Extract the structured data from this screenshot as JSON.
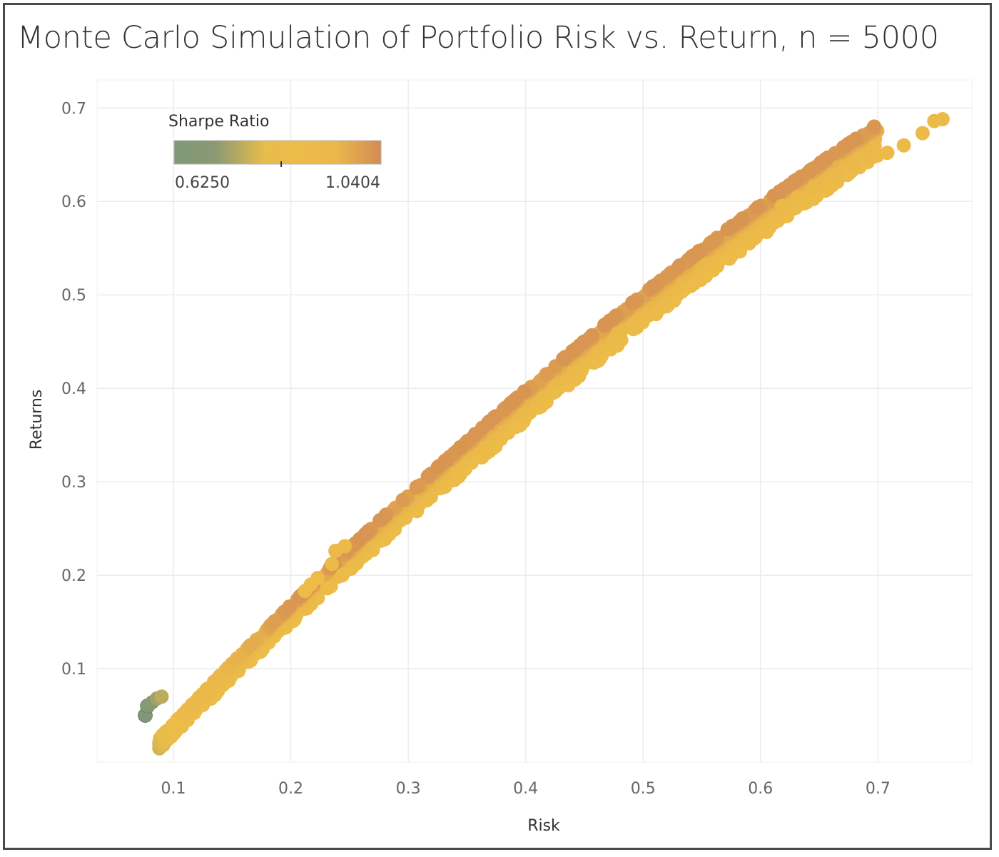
{
  "chart_data": {
    "type": "scatter",
    "title": "Monte Carlo Simulation of Portfolio Risk vs. Return, n = 5000",
    "xlabel": "Risk",
    "ylabel": "Returns",
    "xlim": [
      0.035,
      0.78
    ],
    "ylim": [
      0.0,
      0.73
    ],
    "xticks": [
      0.1,
      0.2,
      0.3,
      0.4,
      0.5,
      0.6,
      0.7
    ],
    "yticks": [
      0.1,
      0.2,
      0.3,
      0.4,
      0.5,
      0.6,
      0.7
    ],
    "grid": true,
    "n": 5000,
    "color_by": "Sharpe Ratio",
    "color_legend": {
      "title": "Sharpe Ratio",
      "min_label": "0.6250",
      "max_label": "1.0404",
      "min": 0.625,
      "max": 1.0404,
      "mid_marker": 0.84,
      "placement": "top-left",
      "colors": [
        "#7f9877",
        "#8a9a73",
        "#e8bd4b",
        "#edbb48",
        "#eab84a",
        "#d38b55"
      ]
    },
    "points": [
      {
        "x": 0.076,
        "y": 0.05,
        "sharpe": 0.63
      },
      {
        "x": 0.078,
        "y": 0.06,
        "sharpe": 0.66
      },
      {
        "x": 0.082,
        "y": 0.064,
        "sharpe": 0.7
      },
      {
        "x": 0.086,
        "y": 0.068,
        "sharpe": 0.73
      },
      {
        "x": 0.09,
        "y": 0.07,
        "sharpe": 0.76
      },
      {
        "x": 0.223,
        "y": 0.197,
        "sharpe": 0.88
      },
      {
        "x": 0.231,
        "y": 0.186,
        "sharpe": 0.87
      },
      {
        "x": 0.235,
        "y": 0.212,
        "sharpe": 0.9
      },
      {
        "x": 0.238,
        "y": 0.226,
        "sharpe": 0.92
      },
      {
        "x": 0.244,
        "y": 0.2,
        "sharpe": 0.86
      },
      {
        "x": 0.246,
        "y": 0.231,
        "sharpe": 0.91
      },
      {
        "x": 0.212,
        "y": 0.183,
        "sharpe": 0.86
      },
      {
        "x": 0.217,
        "y": 0.19,
        "sharpe": 0.87
      },
      {
        "x": 0.618,
        "y": 0.595,
        "sharpe": 0.93
      },
      {
        "x": 0.632,
        "y": 0.605,
        "sharpe": 0.93
      },
      {
        "x": 0.648,
        "y": 0.615,
        "sharpe": 0.92
      },
      {
        "x": 0.664,
        "y": 0.627,
        "sharpe": 0.92
      },
      {
        "x": 0.68,
        "y": 0.64,
        "sharpe": 0.92
      },
      {
        "x": 0.695,
        "y": 0.648,
        "sharpe": 0.92
      },
      {
        "x": 0.708,
        "y": 0.652,
        "sharpe": 0.91
      },
      {
        "x": 0.722,
        "y": 0.66,
        "sharpe": 0.91
      },
      {
        "x": 0.738,
        "y": 0.673,
        "sharpe": 0.91
      },
      {
        "x": 0.748,
        "y": 0.686,
        "sharpe": 0.91
      },
      {
        "x": 0.755,
        "y": 0.688,
        "sharpe": 0.91
      }
    ]
  }
}
